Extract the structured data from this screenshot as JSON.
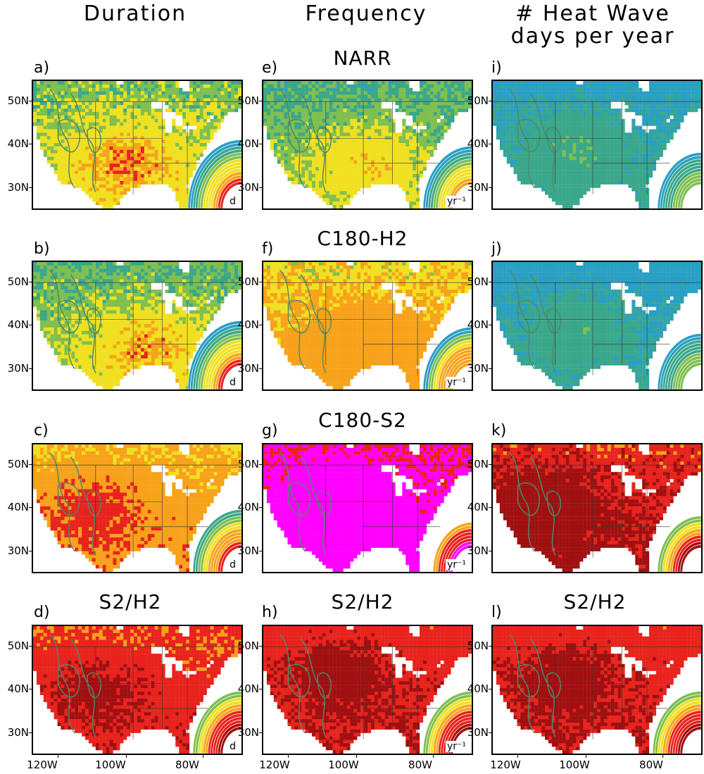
{
  "columns": [
    {
      "title": "Duration"
    },
    {
      "title": "Frequency"
    },
    {
      "title": "# Heat Wave\ndays per year"
    }
  ],
  "row_titles": [
    {
      "text": "NARR",
      "col": 1
    },
    {
      "text": "C180-H2",
      "col": 1
    },
    {
      "text": "C180-S2",
      "col": 1
    },
    {
      "text": "S2/H2",
      "col": 0
    },
    {
      "text": "S2/H2",
      "col": 1
    },
    {
      "text": "S2/H2",
      "col": 2
    }
  ],
  "panels": [
    {
      "label": "a)",
      "unit": "d",
      "scheme": "dur_low",
      "hot": [
        0.45,
        0.62
      ],
      "level": 0.45
    },
    {
      "label": "e)",
      "unit": "yr⁻¹",
      "scheme": "freq_low",
      "hot": [
        0.5,
        0.62
      ],
      "level": 0.4
    },
    {
      "label": "i)",
      "unit": "",
      "scheme": "days_low",
      "hot": [
        0.4,
        0.5
      ],
      "level": 0.2
    },
    {
      "label": "b)",
      "unit": "d",
      "scheme": "dur_low",
      "hot": [
        0.55,
        0.65
      ],
      "level": 0.4
    },
    {
      "label": "f)",
      "unit": "yr⁻¹",
      "scheme": "freq_mid",
      "hot": [
        0.5,
        0.6
      ],
      "level": 0.55
    },
    {
      "label": "j)",
      "unit": "",
      "scheme": "days_low",
      "hot": [
        0.4,
        0.5
      ],
      "level": 0.15
    },
    {
      "label": "c)",
      "unit": "d",
      "scheme": "dur_high",
      "hot": [
        0.3,
        0.5
      ],
      "level": 0.65
    },
    {
      "label": "g)",
      "unit": "yr⁻¹",
      "scheme": "freq_high",
      "hot": [
        0.35,
        0.4
      ],
      "level": 0.85
    },
    {
      "label": "k)",
      "unit": "",
      "scheme": "days_high",
      "hot": [
        0.25,
        0.45
      ],
      "level": 0.8
    },
    {
      "label": "d)",
      "unit": "d",
      "scheme": "ratio",
      "hot": [
        0.3,
        0.5
      ],
      "level": 0.65
    },
    {
      "label": "h)",
      "unit": "yr⁻¹",
      "scheme": "ratio",
      "hot": [
        0.35,
        0.35
      ],
      "level": 0.75
    },
    {
      "label": "l)",
      "unit": "",
      "scheme": "ratio",
      "hot": [
        0.35,
        0.4
      ],
      "level": 0.75
    }
  ],
  "lat_labels": [
    "50N",
    "40N",
    "30N"
  ],
  "lon_labels": [
    "120W",
    "100W",
    "80W"
  ],
  "colors": {
    "blue": "#2a9fc4",
    "teal": "#3aa78a",
    "green": "#7fbf4f",
    "yellow": "#f0e020",
    "orange": "#f7a21a",
    "red": "#e8231d",
    "darkred": "#a01010",
    "magenta": "#ff00ff"
  }
}
